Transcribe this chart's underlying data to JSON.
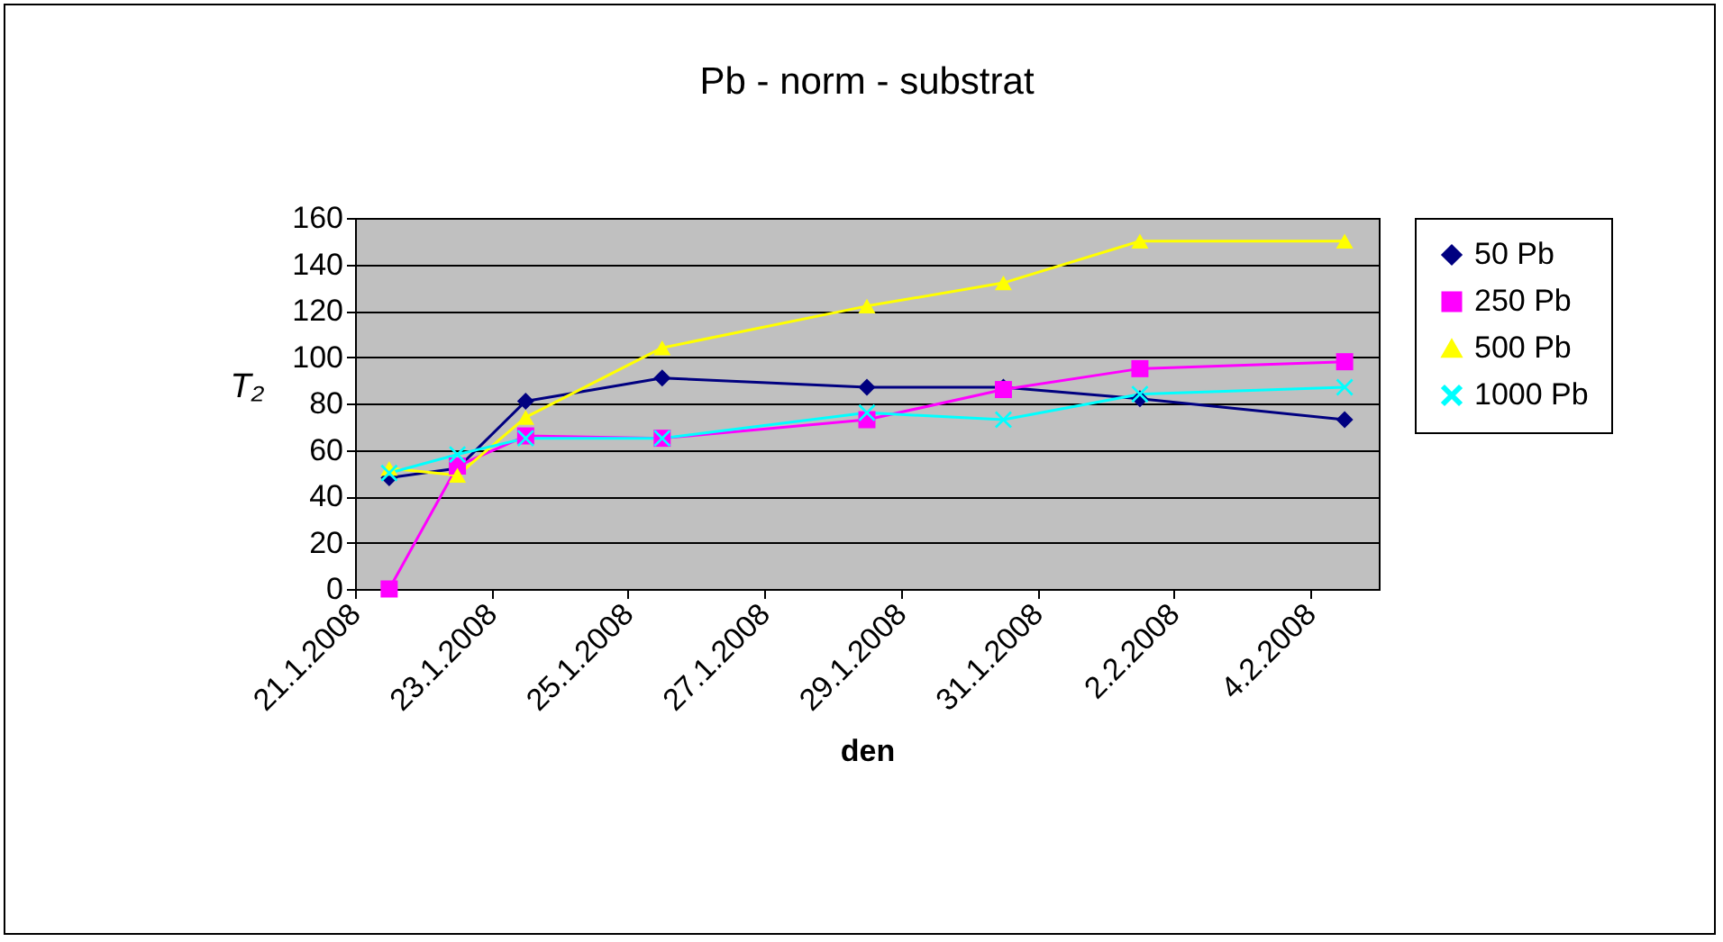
{
  "chart_data": {
    "type": "line",
    "title": "Pb - norm - substrat",
    "xlabel": "den",
    "ylabel": "T₂",
    "x": [
      "2008-01-21T12:00",
      "2008-01-22T12:00",
      "2008-01-23T12:00",
      "2008-01-25T12:00",
      "2008-01-28T12:00",
      "2008-01-30T12:00",
      "2008-02-01T12:00",
      "2008-02-04T12:00"
    ],
    "series": [
      {
        "name": "50 Pb",
        "color": "#000080",
        "marker": "diamond",
        "values": [
          48,
          52,
          81,
          91,
          87,
          87,
          82,
          73
        ]
      },
      {
        "name": "250 Pb",
        "color": "#ff00ff",
        "marker": "square",
        "values": [
          0,
          53,
          66,
          65,
          73,
          86,
          95,
          98
        ]
      },
      {
        "name": "500 Pb",
        "color": "#ffff00",
        "marker": "triangle",
        "values": [
          52,
          49,
          74,
          104,
          122,
          132,
          150,
          150
        ]
      },
      {
        "name": "1000 Pb",
        "color": "#00ffff",
        "marker": "cross",
        "values": [
          50,
          58,
          65,
          65,
          76,
          73,
          84,
          87
        ]
      }
    ],
    "xlim": [
      "2008-01-21",
      "2008-02-05"
    ],
    "xticks": [
      {
        "value": "2008-01-21",
        "label": "21.1.2008"
      },
      {
        "value": "2008-01-23",
        "label": "23.1.2008"
      },
      {
        "value": "2008-01-25",
        "label": "25.1.2008"
      },
      {
        "value": "2008-01-27",
        "label": "27.1.2008"
      },
      {
        "value": "2008-01-29",
        "label": "29.1.2008"
      },
      {
        "value": "2008-01-31",
        "label": "31.1.2008"
      },
      {
        "value": "2008-02-02",
        "label": "2.2.2008"
      },
      {
        "value": "2008-02-04",
        "label": "4.2.2008"
      }
    ],
    "ylim": [
      0,
      160
    ],
    "yticks": [
      0,
      20,
      40,
      60,
      80,
      100,
      120,
      140,
      160
    ],
    "grid": "y",
    "legend": "right"
  }
}
